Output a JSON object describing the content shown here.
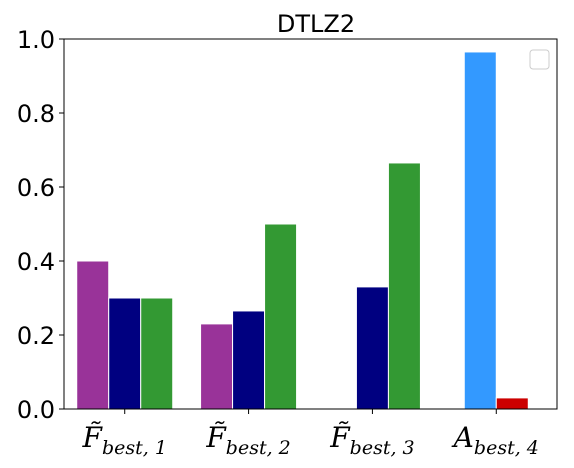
{
  "chart_data": {
    "type": "bar",
    "title": "DTLZ2",
    "ylim": [
      0,
      1.0
    ],
    "yticks": [
      "0.0",
      "0.2",
      "0.4",
      "0.6",
      "0.8",
      "1.0"
    ],
    "categories": [
      {
        "main": "F̃",
        "sub": "best, 1"
      },
      {
        "main": "F̃",
        "sub": "best, 2"
      },
      {
        "main": "F̃",
        "sub": "best, 3"
      },
      {
        "main": "A",
        "sub": "best, 4"
      }
    ],
    "groups": [
      {
        "bars": [
          {
            "value": 0.4,
            "color": "#993399"
          },
          {
            "value": 0.3,
            "color": "#000080"
          },
          {
            "value": 0.3,
            "color": "#339933"
          }
        ]
      },
      {
        "bars": [
          {
            "value": 0.23,
            "color": "#993399"
          },
          {
            "value": 0.265,
            "color": "#000080"
          },
          {
            "value": 0.5,
            "color": "#339933"
          }
        ]
      },
      {
        "bars": [
          {
            "value": 0.33,
            "color": "#000080"
          },
          {
            "value": 0.665,
            "color": "#339933"
          }
        ]
      },
      {
        "bars": [
          {
            "value": 0.965,
            "color": "#3399ff"
          },
          {
            "value": 0.03,
            "color": "#cc0000"
          }
        ]
      }
    ],
    "legend": {
      "placement": "upper right",
      "entries": []
    }
  }
}
